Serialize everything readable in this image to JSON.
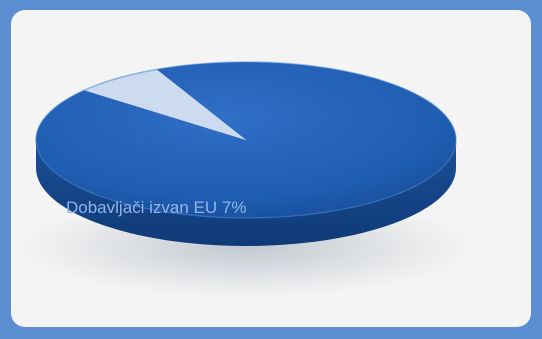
{
  "chart_data": {
    "type": "pie",
    "title": "",
    "slices": [
      {
        "label": "",
        "value": 93,
        "color": "#1f5db0"
      },
      {
        "label": "Dobavljači izvan EU 7%",
        "value": 7,
        "color": "#c5d6ef"
      }
    ],
    "style": "3d",
    "labels": {
      "non_eu": "Dobavljači izvan EU 7%"
    }
  },
  "colors": {
    "frame": "#5b8fd2",
    "panel": "#f4f4f4",
    "main_slice": "#1f5db0",
    "minor_slice": "#c5d6ef",
    "label_text": "#8fb6ea"
  }
}
